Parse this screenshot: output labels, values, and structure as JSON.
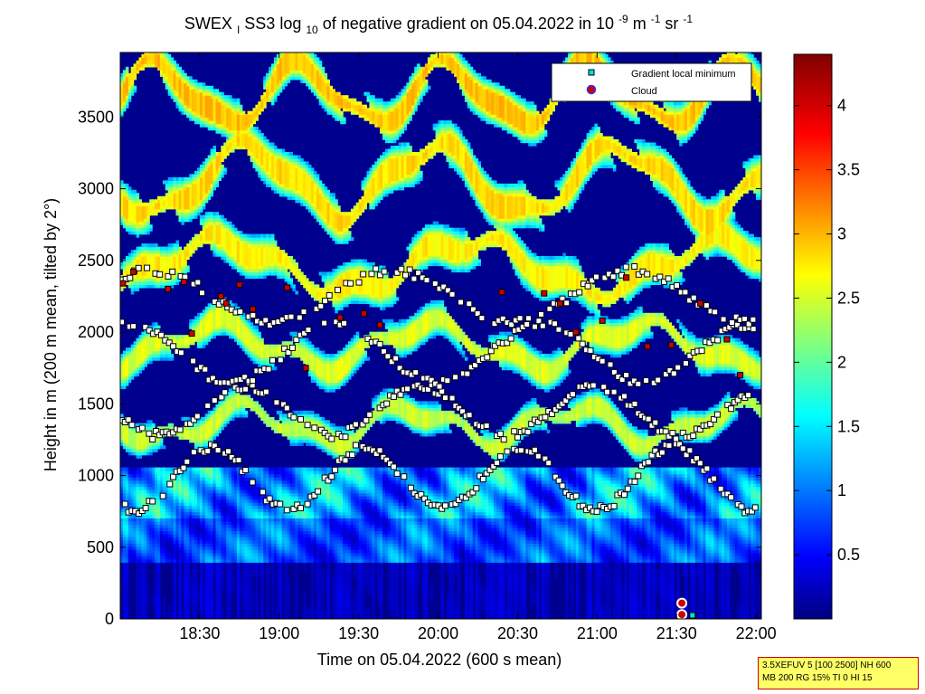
{
  "chart_data": {
    "type": "heatmap",
    "title": {
      "prefix": "SWEX",
      "prefix_sub": "I",
      "main": "SS3 log",
      "main_sub": "10",
      "middle": " of negative gradient on 05.04.2022 in 10",
      "sup1": "-9",
      "unit1": " m",
      "sup2": "-1",
      "unit2": " sr",
      "sup3": "-1"
    },
    "xlabel": "Time on 05.04.2022 (600 s mean)",
    "ylabel": "Height in m (200 m mean, tilted by 2°)",
    "x_range_min": [
      1080,
      1322
    ],
    "y_range_m": [
      0,
      3950
    ],
    "x_ticks": [
      {
        "label": "18:30",
        "min": 1110
      },
      {
        "label": "19:00",
        "min": 1140
      },
      {
        "label": "19:30",
        "min": 1170
      },
      {
        "label": "20:00",
        "min": 1200
      },
      {
        "label": "20:30",
        "min": 1230
      },
      {
        "label": "21:00",
        "min": 1260
      },
      {
        "label": "21:30",
        "min": 1290
      },
      {
        "label": "22:00",
        "min": 1320
      }
    ],
    "y_ticks": [
      0,
      500,
      1000,
      1500,
      2000,
      2500,
      3000,
      3500
    ],
    "colorbar": {
      "range": [
        0,
        4.4
      ],
      "ticks": [
        0.5,
        1,
        1.5,
        2,
        2.5,
        3,
        3.5,
        4
      ],
      "tick_labels": [
        "0.5",
        "1",
        "1.5",
        "2",
        "2.5",
        "3",
        "3.5",
        "4"
      ],
      "colormap": "jet"
    },
    "legend": {
      "placement": "top-right",
      "entries": [
        {
          "label": "Gradient local minimum",
          "color": "#00e0e0",
          "marker": "square"
        },
        {
          "label": "Cloud",
          "color": "#cc0000",
          "marker": "circle"
        }
      ]
    },
    "layers": [
      {
        "name_ref": "cloud-free aerosol base",
        "h0": 0,
        "h1": 380,
        "value": 0.15
      },
      {
        "name_ref": "aerosol low",
        "h0": 380,
        "h1": 700,
        "value": 1.3
      },
      {
        "name_ref": "aerosol mid",
        "h0": 700,
        "h1": 1050,
        "value": 1.9
      }
    ],
    "bands": [
      {
        "base": 1350,
        "amp": 110,
        "period": 62,
        "phase": 0.5,
        "width": 230,
        "value": 2.5
      },
      {
        "base": 1900,
        "amp": 140,
        "period": 80,
        "phase": 1.9,
        "width": 260,
        "value": 2.6
      },
      {
        "base": 2450,
        "amp": 170,
        "period": 95,
        "phase": 3.1,
        "width": 300,
        "value": 2.8
      },
      {
        "base": 3050,
        "amp": 230,
        "period": 70,
        "phase": 0.9,
        "width": 320,
        "value": 2.9
      },
      {
        "base": 3650,
        "amp": 200,
        "period": 55,
        "phase": 2.4,
        "width": 300,
        "value": 3.0
      }
    ],
    "gradient_minima_series": [
      {
        "t0": 1080,
        "t1": 1320,
        "base": 980,
        "amp": 220,
        "period": 58,
        "phase": 0.2,
        "step": 1.3
      },
      {
        "t0": 1080,
        "t1": 1320,
        "base": 1450,
        "amp": 170,
        "period": 66,
        "phase": 1.1,
        "step": 1.3
      },
      {
        "t0": 1080,
        "t1": 1320,
        "base": 1850,
        "amp": 200,
        "period": 78,
        "phase": 2.3,
        "step": 1.5
      },
      {
        "t0": 1080,
        "t1": 1320,
        "base": 2250,
        "amp": 180,
        "period": 90,
        "phase": 0.7,
        "step": 1.6
      }
    ],
    "cloud_points_min_h": [
      [
        1081,
        2340
      ],
      [
        1085,
        2420
      ],
      [
        1098,
        2300
      ],
      [
        1104,
        2350
      ],
      [
        1118,
        2250
      ],
      [
        1125,
        2330
      ],
      [
        1143,
        2310
      ],
      [
        1163,
        2100
      ],
      [
        1172,
        2130
      ],
      [
        1178,
        2050
      ],
      [
        1224,
        2280
      ],
      [
        1240,
        2270
      ],
      [
        1246,
        2200
      ],
      [
        1252,
        2000
      ],
      [
        1262,
        2080
      ],
      [
        1271,
        2380
      ],
      [
        1279,
        1900
      ],
      [
        1288,
        1910
      ],
      [
        1299,
        2200
      ],
      [
        1309,
        1950
      ],
      [
        1314,
        1700
      ],
      [
        1120,
        2200
      ],
      [
        1107,
        1990
      ],
      [
        1130,
        2160
      ],
      [
        1150,
        1750
      ]
    ],
    "surface_points": [
      {
        "t": 1292,
        "h": 110,
        "kind": "cloud"
      },
      {
        "t": 1292,
        "h": 30,
        "kind": "cloud"
      },
      {
        "t": 1296,
        "h": 25,
        "kind": "minimum"
      }
    ]
  },
  "info_box": {
    "line1": "3.5XEFUV 5 [100 2500] NH 600",
    "line2": "MB 200 RG 15% TI 0 HI 15"
  }
}
